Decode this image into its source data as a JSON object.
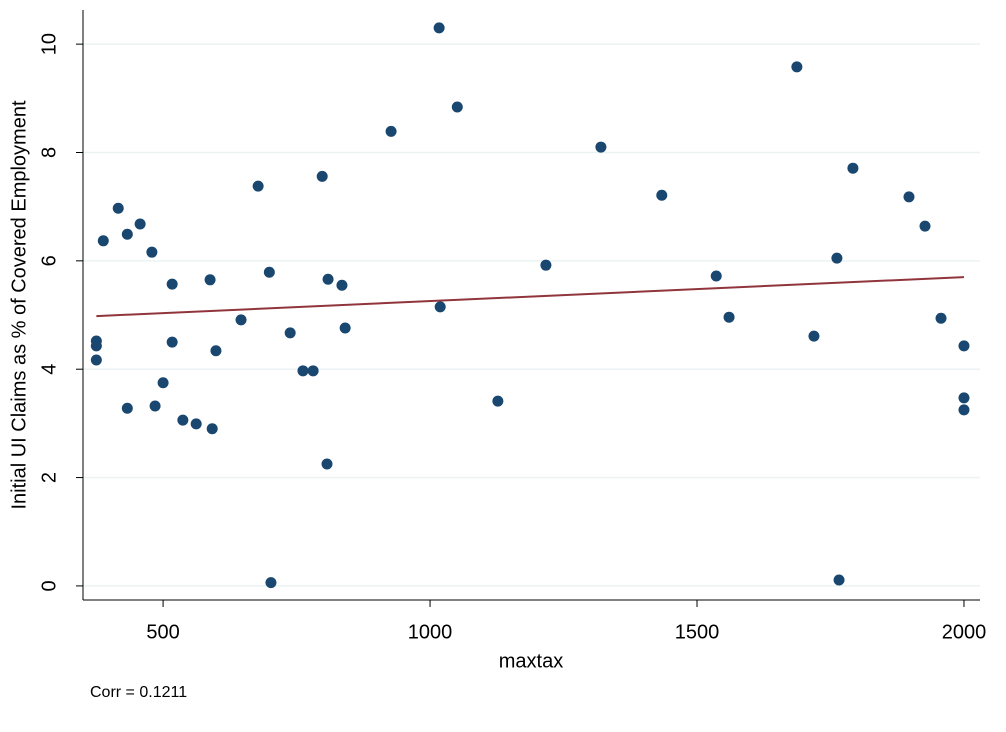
{
  "chart_data": {
    "type": "scatter",
    "ylabel": "Initial UI Claims as % of Covered Employment",
    "xlabel": "maxtax",
    "note": "Corr = 0.1211",
    "xlim": [
      350,
      2030
    ],
    "ylim": [
      -0.26,
      10.63
    ],
    "xticks": [
      500,
      1000,
      1500,
      2000
    ],
    "yticks": [
      0,
      2,
      4,
      6,
      8,
      10
    ],
    "grid": true,
    "series": [
      {
        "type": "scatter",
        "color": "#1a476f",
        "x": [
          375,
          375,
          375,
          388,
          416,
          433,
          433,
          457,
          479,
          485,
          500,
          517,
          517,
          537,
          562,
          588,
          592,
          599,
          646,
          678,
          699,
          702,
          738,
          762,
          781,
          798,
          807,
          809,
          835,
          841,
          927,
          1017,
          1019,
          1051,
          1127,
          1217,
          1320,
          1434,
          1536,
          1560,
          1687,
          1719,
          1762,
          1766,
          1792,
          1897,
          1927,
          1957,
          2000,
          2000,
          2000
        ],
        "y": [
          4.52,
          4.43,
          4.17,
          6.37,
          6.97,
          6.49,
          3.28,
          6.68,
          6.16,
          3.32,
          3.75,
          5.57,
          4.5,
          3.06,
          2.99,
          5.65,
          2.9,
          4.34,
          4.91,
          7.38,
          5.79,
          0.06,
          4.67,
          3.97,
          3.97,
          7.56,
          2.25,
          5.66,
          5.55,
          4.76,
          8.39,
          10.3,
          5.15,
          8.84,
          3.41,
          5.92,
          8.1,
          7.21,
          5.72,
          4.96,
          9.58,
          4.61,
          6.05,
          0.11,
          7.71,
          7.18,
          6.64,
          4.94,
          4.43,
          3.47,
          3.25
        ]
      },
      {
        "type": "line",
        "color": "#90353b",
        "x": [
          375,
          2000
        ],
        "y": [
          4.98,
          5.7
        ]
      }
    ]
  }
}
